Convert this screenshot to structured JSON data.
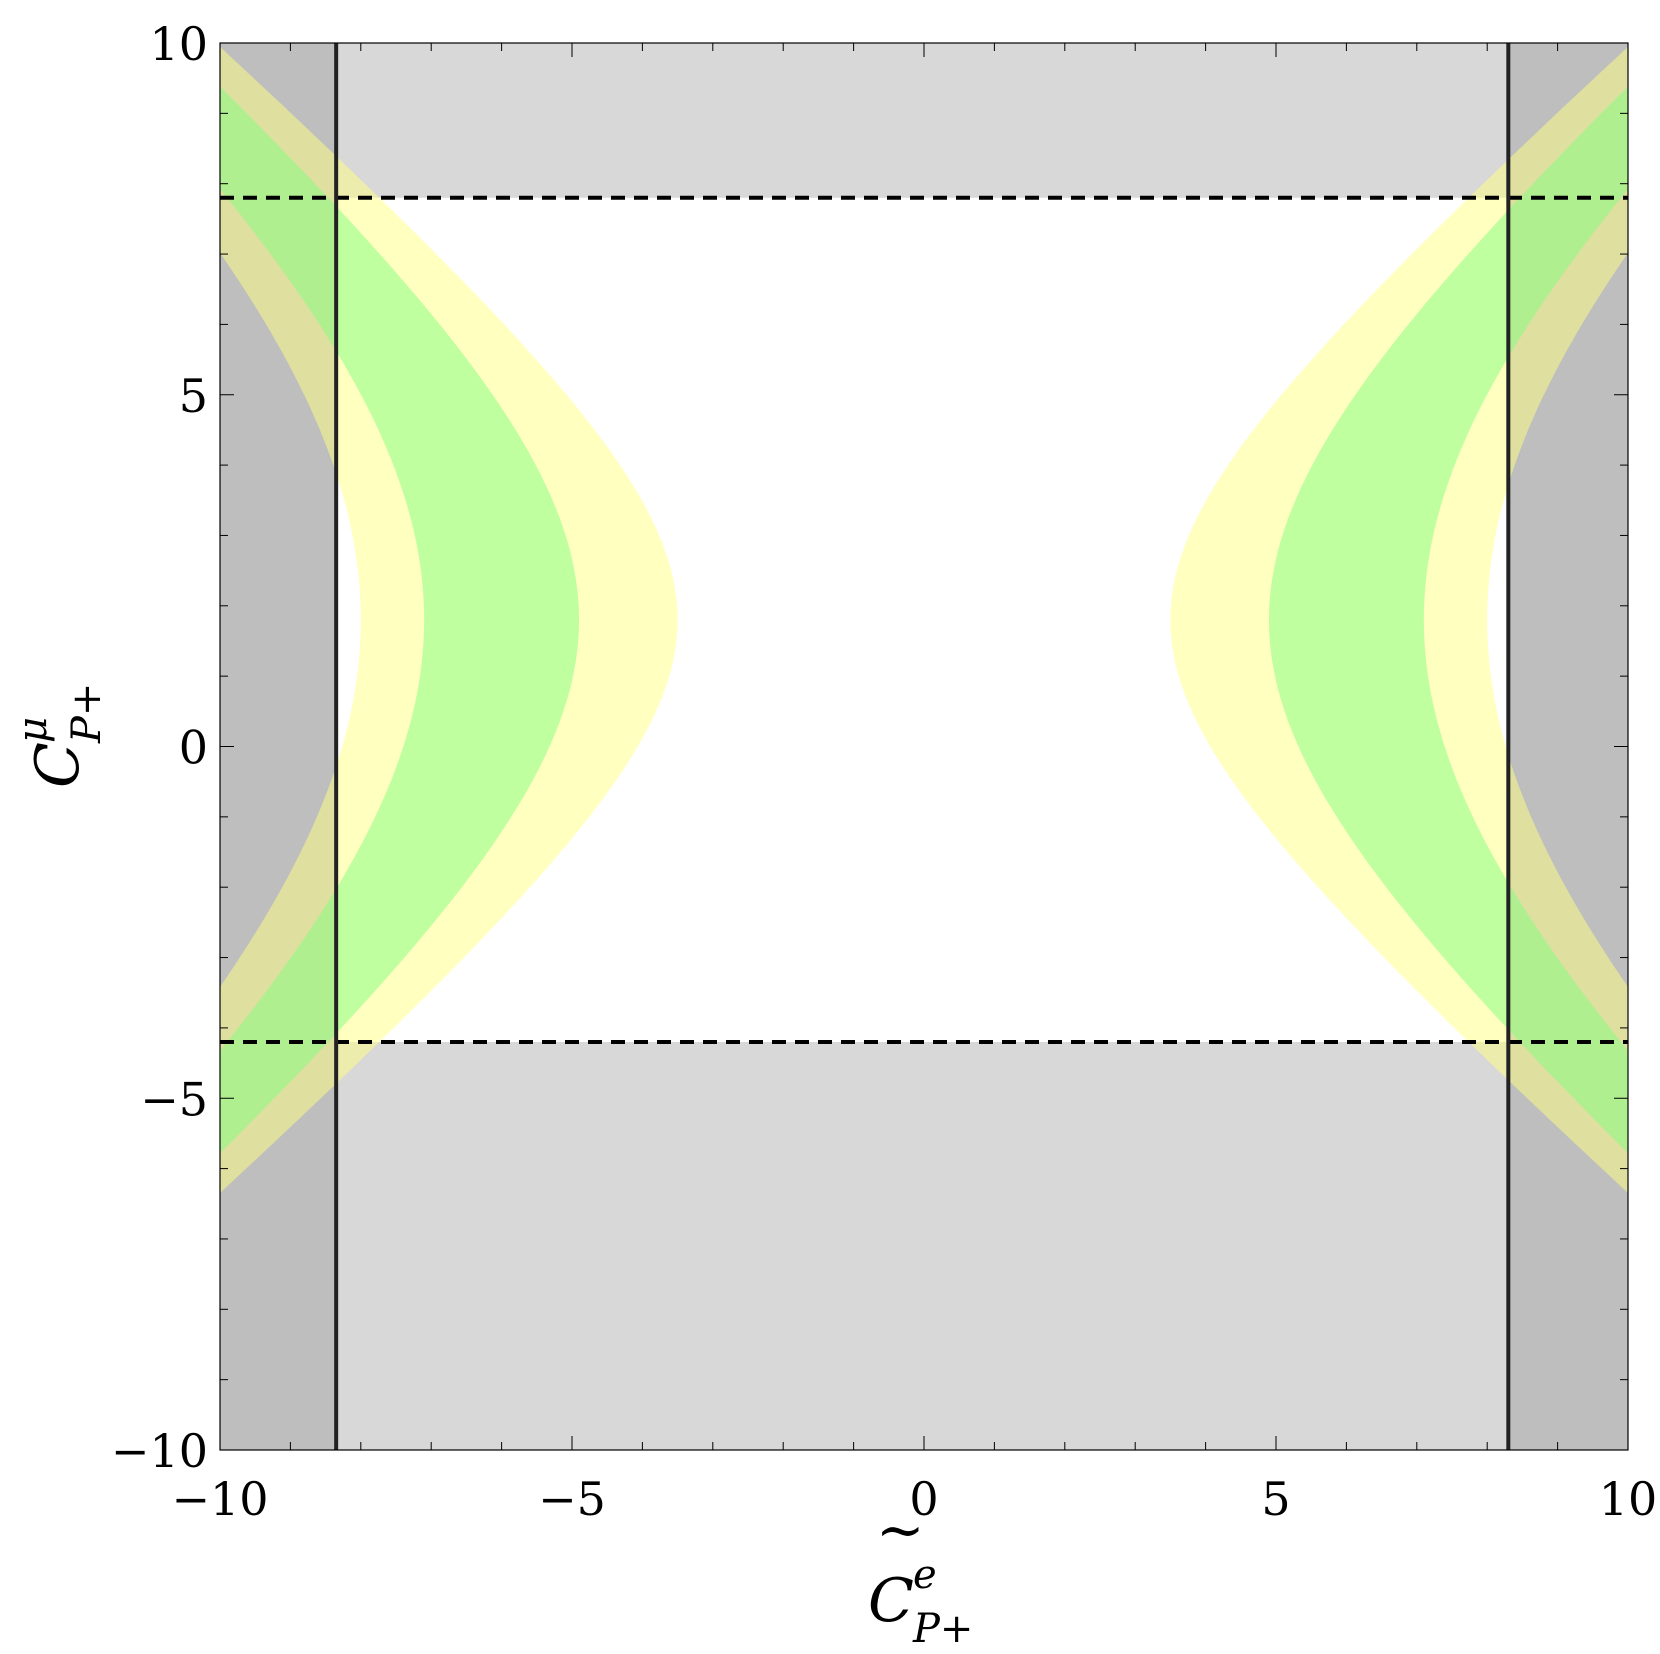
{
  "chart_data": {
    "type": "area",
    "xlabel": {
      "base": "C",
      "sup": "e",
      "sub": "P+"
    },
    "ylabel": {
      "base": "C",
      "sup": "μ",
      "sub": "P+"
    },
    "xlim": [
      -10,
      10
    ],
    "ylim": [
      -10,
      10
    ],
    "xticks": [
      -10,
      -5,
      0,
      5,
      10
    ],
    "yticks": [
      -10,
      -5,
      0,
      5,
      10
    ],
    "xtick_labels": [
      "−10",
      "−5",
      "0",
      "5",
      "10"
    ],
    "ytick_labels": [
      "−10",
      "−5",
      "0",
      "5",
      "10"
    ],
    "minor_ticks_per_unit": 1,
    "grid": false,
    "colors": {
      "excluded_gray": "#d8d8d8",
      "excluded_overlap_gray": "#bebebe",
      "band_outer_yellow": "#ffff80",
      "band_inner_green": "#80ff80",
      "line": "#000000"
    },
    "vertical_limits": {
      "style": "solid",
      "x": [
        -8.35,
        8.3
      ]
    },
    "horizontal_limits": {
      "style": "dashed",
      "y": [
        7.8,
        -4.2
      ]
    },
    "bands": {
      "center_y": 1.8,
      "curvature_a": 1.15,
      "left": {
        "yellow_inner_vertex_x": -8.0,
        "green_inner_vertex_x": -7.1,
        "green_outer_vertex_x": -4.9,
        "yellow_outer_vertex_x": -3.5
      },
      "right": {
        "yellow_inner_vertex_x": 3.5,
        "green_inner_vertex_x": 4.9,
        "green_outer_vertex_x": 7.1,
        "yellow_outer_vertex_x": 8.0
      }
    }
  }
}
